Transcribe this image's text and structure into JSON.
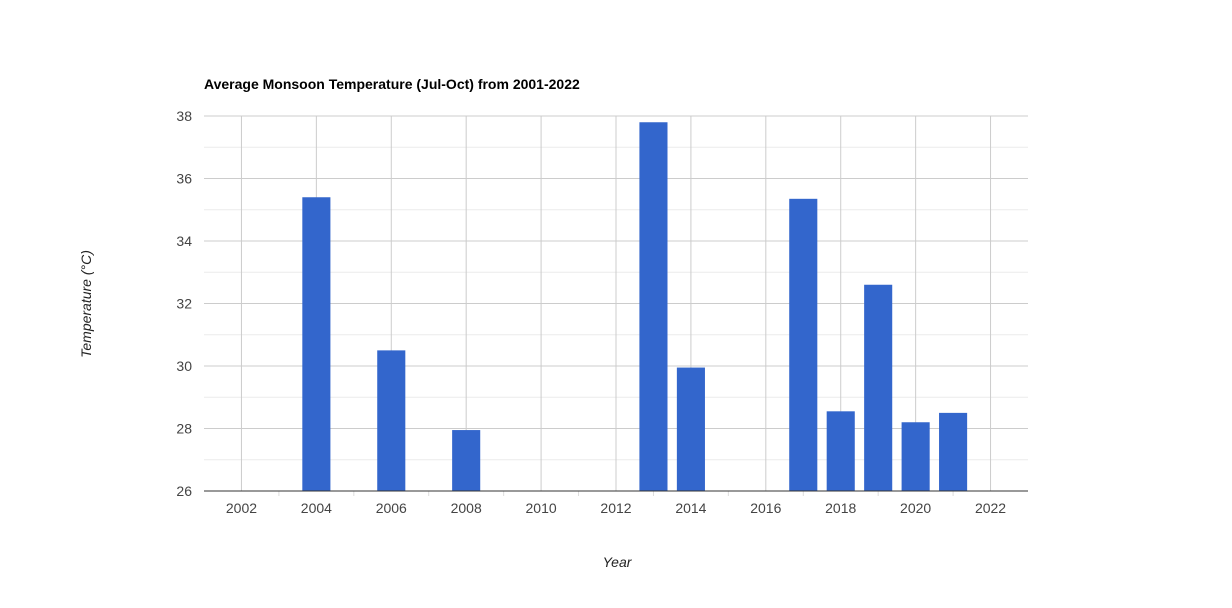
{
  "chart_data": {
    "type": "bar",
    "title": "Average Monsoon Temperature (Jul-Oct) from 2001-2022",
    "xlabel": "Year",
    "ylabel": "Temperature (°C)",
    "x_ticks": [
      "2002",
      "2004",
      "2006",
      "2008",
      "2010",
      "2012",
      "2014",
      "2016",
      "2018",
      "2020",
      "2022"
    ],
    "y_ticks": [
      "26",
      "28",
      "30",
      "32",
      "34",
      "36",
      "38"
    ],
    "ylim": [
      26,
      38
    ],
    "xlim": [
      2001,
      2023
    ],
    "grid": true,
    "legend": "none",
    "bar_color": "#3366cc",
    "x": [
      2004,
      2006,
      2008,
      2013,
      2014,
      2017,
      2018,
      2019,
      2020,
      2021
    ],
    "values": [
      35.4,
      30.5,
      27.95,
      37.8,
      29.95,
      35.35,
      28.55,
      32.6,
      28.2,
      28.5
    ]
  }
}
